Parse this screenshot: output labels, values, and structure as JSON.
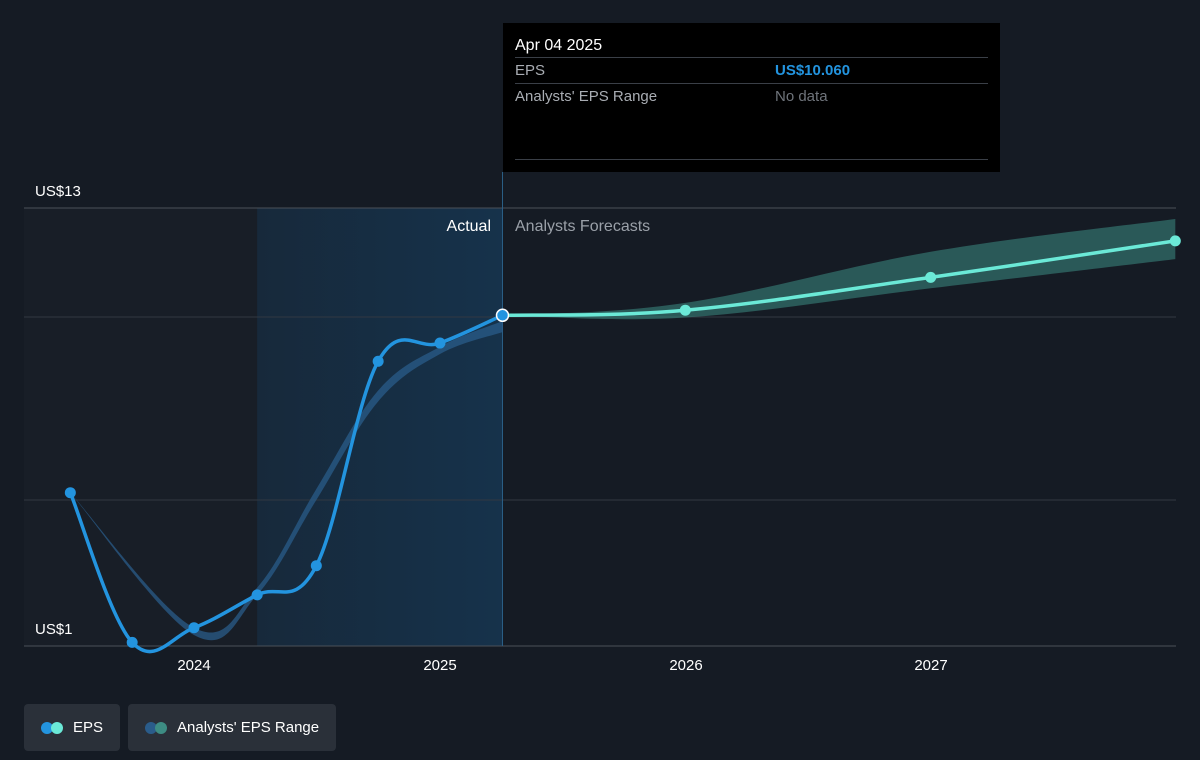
{
  "tooltip": {
    "date": "Apr 04 2025",
    "rows": [
      {
        "label": "EPS",
        "value": "US$10.060"
      },
      {
        "label": "Analysts' EPS Range",
        "value": "No data"
      }
    ]
  },
  "legend": {
    "items": [
      {
        "label": "EPS",
        "colors": [
          "#2394df",
          "#6be9d7"
        ]
      },
      {
        "label": "Analysts' EPS Range",
        "colors": [
          "#2a5c8a",
          "#3d8c83"
        ]
      }
    ]
  },
  "chart_data": {
    "type": "line",
    "y_tick_labels": [
      "US$13",
      "US$1"
    ],
    "ylim": [
      1,
      13
    ],
    "x_tick_labels": [
      "2024",
      "2025",
      "2026",
      "2027"
    ],
    "section_labels": {
      "actual": "Actual",
      "forecast": "Analysts Forecasts"
    },
    "colors": {
      "eps_actual": "#2394df",
      "eps_forecast": "#6be9d7",
      "range_actual": "#2a5c8a",
      "range_forecast": "#3d8c83",
      "highlight": "#16324b",
      "grid": "#323842"
    },
    "series": [
      {
        "name": "EPS",
        "segment": "actual",
        "points": [
          {
            "x": "2023-07-01",
            "y": 5.2
          },
          {
            "x": "2023-10-01",
            "y": 1.1
          },
          {
            "x": "2024-01-01",
            "y": 1.5
          },
          {
            "x": "2024-04-04",
            "y": 2.4
          },
          {
            "x": "2024-07-01",
            "y": 3.2
          },
          {
            "x": "2024-10-01",
            "y": 8.8
          },
          {
            "x": "2025-01-01",
            "y": 9.3
          },
          {
            "x": "2025-04-04",
            "y": 10.06
          }
        ]
      },
      {
        "name": "EPS",
        "segment": "forecast",
        "points": [
          {
            "x": "2025-04-04",
            "y": 10.06
          },
          {
            "x": "2026-01-01",
            "y": 10.2
          },
          {
            "x": "2027-01-01",
            "y": 11.1
          },
          {
            "x": "2027-12-31",
            "y": 12.1
          }
        ]
      },
      {
        "name": "Analysts' EPS Range",
        "segment": "actual",
        "low": [
          {
            "x": "2023-07-01",
            "y": 5.2
          },
          {
            "x": "2024-01-01",
            "y": 1.3
          },
          {
            "x": "2024-04-04",
            "y": 2.4
          },
          {
            "x": "2024-07-01",
            "y": 5.0
          },
          {
            "x": "2024-10-01",
            "y": 7.7
          },
          {
            "x": "2025-01-01",
            "y": 9.0
          },
          {
            "x": "2025-04-04",
            "y": 9.6
          }
        ],
        "high": [
          {
            "x": "2023-07-01",
            "y": 5.2
          },
          {
            "x": "2024-01-01",
            "y": 1.5
          },
          {
            "x": "2024-04-04",
            "y": 2.6
          },
          {
            "x": "2024-07-01",
            "y": 5.3
          },
          {
            "x": "2024-10-01",
            "y": 8.0
          },
          {
            "x": "2025-01-01",
            "y": 9.2
          },
          {
            "x": "2025-04-04",
            "y": 9.9
          }
        ]
      },
      {
        "name": "Analysts' EPS Range",
        "segment": "forecast",
        "low": [
          {
            "x": "2025-04-04",
            "y": 10.06
          },
          {
            "x": "2026-01-01",
            "y": 10.0
          },
          {
            "x": "2027-01-01",
            "y": 10.8
          },
          {
            "x": "2027-12-31",
            "y": 11.6
          }
        ],
        "high": [
          {
            "x": "2025-04-04",
            "y": 10.06
          },
          {
            "x": "2026-01-01",
            "y": 10.4
          },
          {
            "x": "2027-01-01",
            "y": 11.8
          },
          {
            "x": "2027-12-31",
            "y": 12.7
          }
        ]
      }
    ],
    "present_date": "2025-04-04",
    "highlight_start": "2024-04-04"
  }
}
